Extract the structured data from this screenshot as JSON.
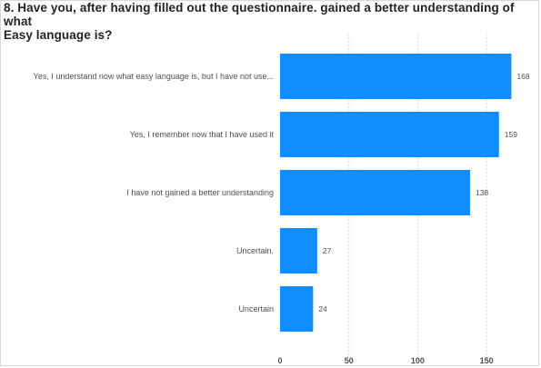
{
  "chart_data": {
    "type": "bar",
    "orientation": "horizontal",
    "title_line1": "8. Have you, after having filled out the questionnaire. gained a better understanding of what",
    "title_line2": "Easy language is?",
    "categories": [
      "Yes, I understand now what easy language is, but I have not use...",
      "Yes, I remember now that I have used it",
      "I have not gained a better understanding",
      "Uncertain.",
      "Uncertain"
    ],
    "values": [
      168,
      159,
      138,
      27,
      24
    ],
    "data_labels": [
      "168",
      "159",
      "138",
      "27",
      "24"
    ],
    "xlim": [
      0,
      175
    ],
    "x_ticks": [
      0,
      50,
      100,
      150
    ],
    "x_tick_labels": [
      "0",
      "50",
      "100",
      "150"
    ],
    "grid": "vertical dashed",
    "bar_color": "#118dff"
  }
}
